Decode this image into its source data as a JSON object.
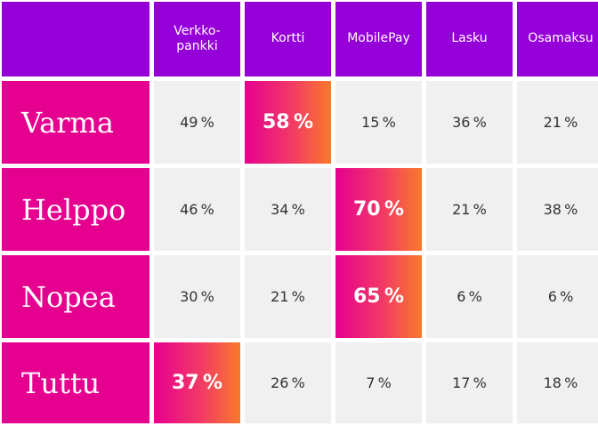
{
  "chart_data": {
    "type": "table",
    "columns": [
      "Verkko-\npankki",
      "Kortti",
      "MobilePay",
      "Lasku",
      "Osamaksu"
    ],
    "rows": [
      {
        "label": "Varma",
        "values": [
          49,
          58,
          15,
          36,
          21
        ],
        "highlight": 1
      },
      {
        "label": "Helppo",
        "values": [
          46,
          34,
          70,
          21,
          38
        ],
        "highlight": 2
      },
      {
        "label": "Nopea",
        "values": [
          30,
          21,
          65,
          6,
          6
        ],
        "highlight": 2
      },
      {
        "label": "Tuttu",
        "values": [
          37,
          26,
          7,
          17,
          18
        ],
        "highlight": 0
      }
    ],
    "unit": "%",
    "colors": {
      "header": "#9500d9",
      "row_label": "#e6008f",
      "cell": "#f0f0f0",
      "highlight_start": "#e6008f",
      "highlight_end": "#f97a2a"
    }
  }
}
